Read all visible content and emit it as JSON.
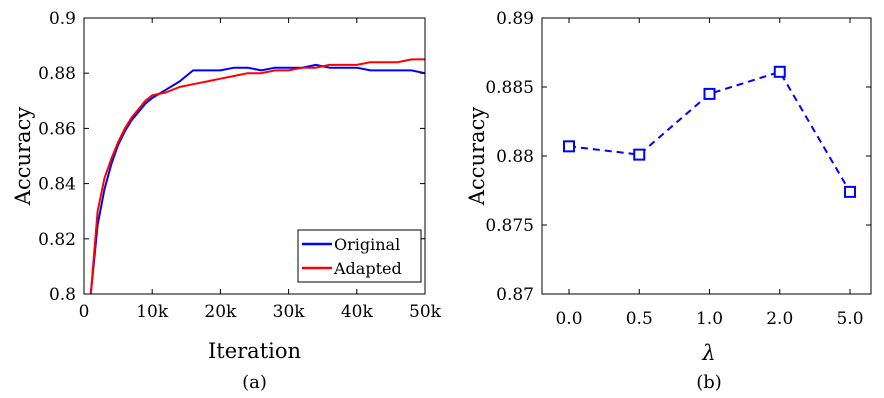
{
  "chart_data": [
    {
      "type": "line",
      "panel": "(a)",
      "xlabel": "Iteration",
      "ylabel": "Accuracy",
      "xlim": [
        0,
        50000
      ],
      "ylim": [
        0.8,
        0.9
      ],
      "xticks": [
        0,
        10000,
        20000,
        30000,
        40000,
        50000
      ],
      "xtick_labels": [
        "0",
        "10k",
        "20k",
        "30k",
        "40k",
        "50k"
      ],
      "yticks": [
        0.8,
        0.82,
        0.84,
        0.86,
        0.88,
        0.9
      ],
      "ytick_labels": [
        "0.8",
        "0.82",
        "0.84",
        "0.86",
        "0.88",
        "0.9"
      ],
      "grid": false,
      "legend_position": "bottom-right",
      "series": [
        {
          "name": "Original",
          "color": "#0000ff",
          "x": [
            1000,
            2000,
            3000,
            4000,
            5000,
            6000,
            7000,
            8000,
            9000,
            10000,
            12000,
            14000,
            16000,
            18000,
            20000,
            22000,
            24000,
            26000,
            28000,
            30000,
            32000,
            34000,
            36000,
            38000,
            40000,
            42000,
            44000,
            46000,
            48000,
            50000
          ],
          "y": [
            0.8,
            0.825,
            0.838,
            0.847,
            0.854,
            0.859,
            0.863,
            0.866,
            0.869,
            0.871,
            0.874,
            0.877,
            0.881,
            0.881,
            0.881,
            0.882,
            0.882,
            0.881,
            0.882,
            0.882,
            0.882,
            0.883,
            0.882,
            0.882,
            0.882,
            0.881,
            0.881,
            0.881,
            0.881,
            0.88
          ]
        },
        {
          "name": "Adapted",
          "color": "#ff0000",
          "x": [
            1000,
            2000,
            3000,
            4000,
            5000,
            6000,
            7000,
            8000,
            9000,
            10000,
            12000,
            14000,
            16000,
            18000,
            20000,
            22000,
            24000,
            26000,
            28000,
            30000,
            32000,
            34000,
            36000,
            38000,
            40000,
            42000,
            44000,
            46000,
            48000,
            50000
          ],
          "y": [
            0.8,
            0.83,
            0.842,
            0.849,
            0.855,
            0.86,
            0.864,
            0.867,
            0.87,
            0.872,
            0.873,
            0.875,
            0.876,
            0.877,
            0.878,
            0.879,
            0.88,
            0.88,
            0.881,
            0.881,
            0.882,
            0.882,
            0.883,
            0.883,
            0.883,
            0.884,
            0.884,
            0.884,
            0.885,
            0.885
          ]
        }
      ]
    },
    {
      "type": "line",
      "panel": "(b)",
      "xlabel": "λ",
      "ylabel": "Accuracy",
      "ylim": [
        0.87,
        0.89
      ],
      "yticks": [
        0.87,
        0.875,
        0.88,
        0.885,
        0.89
      ],
      "ytick_labels": [
        "0.87",
        "0.875",
        "0.88",
        "0.885",
        "0.89"
      ],
      "categories": [
        "0.0",
        "0.5",
        "1.0",
        "2.0",
        "5.0"
      ],
      "grid": false,
      "series": [
        {
          "color": "#0000ff",
          "line_style": "dashed",
          "marker": "square",
          "values": [
            0.8807,
            0.8801,
            0.8845,
            0.8861,
            0.8774
          ]
        }
      ]
    }
  ]
}
